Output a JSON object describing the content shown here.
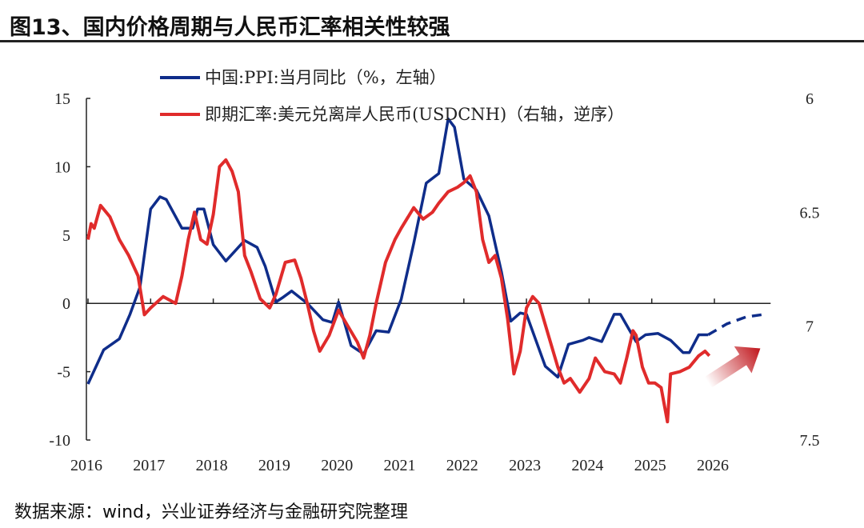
{
  "title": "图13、国内价格周期与人民币汇率相关性较强",
  "footer": "数据来源：wind，兴业证券经济与金融研究院整理",
  "chart_data": {
    "type": "line",
    "title": "图13、国内价格周期与人民币汇率相关性较强",
    "x_ticks": [
      "2016",
      "2017",
      "2018",
      "2019",
      "2020",
      "2021",
      "2022",
      "2023",
      "2024",
      "2025",
      "2026"
    ],
    "xlim": [
      2016,
      2027
    ],
    "left_axis": {
      "ticks": [
        "15",
        "10",
        "5",
        "0",
        "-5",
        "-10"
      ],
      "ylim": [
        -10,
        15
      ]
    },
    "right_axis": {
      "ticks": [
        "6",
        "6.5",
        "7",
        "7.5"
      ],
      "ylim": [
        6,
        7.5
      ],
      "reversed": true
    },
    "legend_placement": "top-left",
    "series": [
      {
        "name": "中国:PPI:当月同比（%，左轴）",
        "axis": "left",
        "color": "#0f2d8a",
        "x": [
          2016.0,
          2016.25,
          2016.5,
          2016.67,
          2016.83,
          2017.0,
          2017.15,
          2017.25,
          2017.5,
          2017.67,
          2017.75,
          2017.85,
          2018.0,
          2018.2,
          2018.5,
          2018.7,
          2018.83,
          2019.0,
          2019.1,
          2019.25,
          2019.5,
          2019.75,
          2019.9,
          2020.0,
          2020.2,
          2020.4,
          2020.6,
          2020.8,
          2021.0,
          2021.2,
          2021.4,
          2021.6,
          2021.75,
          2021.85,
          2022.0,
          2022.2,
          2022.4,
          2022.6,
          2022.75,
          2022.9,
          2023.0,
          2023.3,
          2023.5,
          2023.67,
          2023.9,
          2024.0,
          2024.2,
          2024.4,
          2024.5,
          2024.75,
          2024.9,
          2025.1,
          2025.3,
          2025.5,
          2025.6,
          2025.75,
          2025.9
        ],
        "y": [
          -5.9,
          -3.4,
          -2.6,
          -0.8,
          1.2,
          6.9,
          7.8,
          7.6,
          5.5,
          5.5,
          6.9,
          6.9,
          4.3,
          3.1,
          4.6,
          4.1,
          2.7,
          0.1,
          0.4,
          0.9,
          0.0,
          -1.2,
          -1.4,
          0.1,
          -3.1,
          -3.7,
          -2.0,
          -2.1,
          0.3,
          4.4,
          8.8,
          9.5,
          13.5,
          12.9,
          9.1,
          8.3,
          6.4,
          2.3,
          -1.3,
          -0.7,
          -0.8,
          -4.6,
          -5.4,
          -3.0,
          -2.7,
          -2.5,
          -2.8,
          -0.8,
          -0.8,
          -2.8,
          -2.3,
          -2.2,
          -2.7,
          -3.6,
          -3.6,
          -2.3,
          -2.3
        ]
      },
      {
        "name": "PPI forecast",
        "axis": "left",
        "style": "dashed",
        "color": "#0f2d8a",
        "x": [
          2025.9,
          2026.2,
          2026.5,
          2026.8
        ],
        "y": [
          -2.3,
          -1.5,
          -1.0,
          -0.8
        ]
      },
      {
        "name": "即期汇率:美元兑离岸人民币(USDCNH)（右轴，逆序）",
        "axis": "right",
        "color": "#e02b2b",
        "x": [
          2016.0,
          2016.05,
          2016.1,
          2016.2,
          2016.35,
          2016.5,
          2016.65,
          2016.8,
          2016.9,
          2017.0,
          2017.2,
          2017.4,
          2017.5,
          2017.6,
          2017.7,
          2017.8,
          2017.9,
          2018.0,
          2018.1,
          2018.2,
          2018.3,
          2018.4,
          2018.5,
          2018.6,
          2018.75,
          2018.9,
          2019.0,
          2019.15,
          2019.3,
          2019.4,
          2019.5,
          2019.6,
          2019.7,
          2019.85,
          2020.0,
          2020.15,
          2020.3,
          2020.4,
          2020.5,
          2020.6,
          2020.75,
          2020.9,
          2021.0,
          2021.2,
          2021.35,
          2021.5,
          2021.6,
          2021.75,
          2021.9,
          2022.0,
          2022.1,
          2022.2,
          2022.3,
          2022.4,
          2022.5,
          2022.6,
          2022.7,
          2022.8,
          2022.9,
          2023.0,
          2023.1,
          2023.2,
          2023.35,
          2023.5,
          2023.6,
          2023.7,
          2023.85,
          2024.0,
          2024.1,
          2024.25,
          2024.4,
          2024.5,
          2024.6,
          2024.7,
          2024.75,
          2024.85,
          2024.95,
          2025.05,
          2025.15,
          2025.25,
          2025.3,
          2025.45,
          2025.6,
          2025.75,
          2025.85,
          2025.92
        ],
        "y": [
          6.62,
          6.55,
          6.57,
          6.47,
          6.52,
          6.62,
          6.69,
          6.78,
          6.95,
          6.92,
          6.87,
          6.9,
          6.78,
          6.62,
          6.5,
          6.62,
          6.64,
          6.51,
          6.3,
          6.27,
          6.32,
          6.41,
          6.69,
          6.76,
          6.88,
          6.92,
          6.86,
          6.72,
          6.71,
          6.79,
          6.9,
          7.02,
          7.11,
          7.04,
          6.93,
          7.0,
          7.07,
          7.14,
          7.04,
          6.9,
          6.72,
          6.62,
          6.57,
          6.48,
          6.53,
          6.5,
          6.46,
          6.41,
          6.39,
          6.37,
          6.34,
          6.41,
          6.62,
          6.72,
          6.69,
          6.79,
          6.97,
          7.21,
          7.11,
          6.92,
          6.87,
          6.9,
          7.04,
          7.18,
          7.25,
          7.23,
          7.29,
          7.23,
          7.14,
          7.2,
          7.21,
          7.25,
          7.14,
          7.02,
          7.04,
          7.18,
          7.25,
          7.25,
          7.27,
          7.42,
          7.21,
          7.2,
          7.18,
          7.13,
          7.11,
          7.13
        ]
      }
    ],
    "annotation": "trend-up-arrow"
  }
}
